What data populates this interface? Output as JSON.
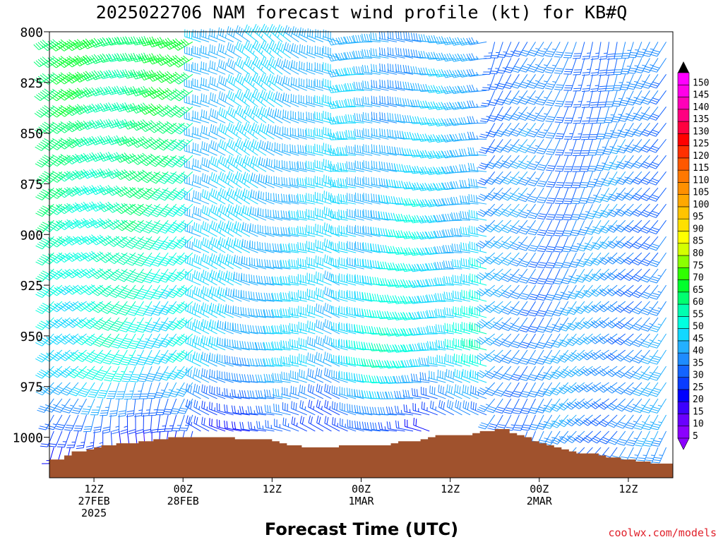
{
  "chart_data": {
    "type": "wind-barb",
    "title": "2025022706 NAM forecast wind profile (kt) for KB#Q",
    "xlabel": "Forecast Time (UTC)",
    "ylabel": "",
    "units": "kt",
    "y_axis": {
      "ticks": [
        "800",
        "825",
        "850",
        "875",
        "900",
        "925",
        "950",
        "975",
        "1000"
      ],
      "ylim_hPa": [
        1020,
        800
      ],
      "reversed": true
    },
    "x_axis": {
      "ticks": [
        {
          "hour": 6,
          "line1": "12Z",
          "line2": "27FEB",
          "line3": "2025"
        },
        {
          "hour": 18,
          "line1": "00Z",
          "line2": "28FEB",
          "line3": ""
        },
        {
          "hour": 30,
          "line1": "12Z",
          "line2": "",
          "line3": ""
        },
        {
          "hour": 42,
          "line1": "00Z",
          "line2": "1MAR",
          "line3": ""
        },
        {
          "hour": 54,
          "line1": "12Z",
          "line2": "",
          "line3": ""
        },
        {
          "hour": 66,
          "line1": "00Z",
          "line2": "2MAR",
          "line3": ""
        },
        {
          "hour": 78,
          "line1": "12Z",
          "line2": "",
          "line3": ""
        }
      ],
      "xlim_hour": [
        0,
        84
      ]
    },
    "colorbar": {
      "levels": [
        5,
        10,
        15,
        20,
        25,
        30,
        35,
        40,
        45,
        50,
        55,
        60,
        65,
        70,
        75,
        80,
        85,
        90,
        95,
        100,
        105,
        110,
        115,
        120,
        125,
        130,
        135,
        140,
        145,
        150
      ],
      "colors": [
        "#8b00ff",
        "#6a00ff",
        "#3c00ff",
        "#0000ff",
        "#0a3cff",
        "#1464ff",
        "#1e8cff",
        "#24b0ff",
        "#12d8ff",
        "#00ffe0",
        "#00ffb0",
        "#00ff70",
        "#00ff2c",
        "#30ff00",
        "#8cff00",
        "#d4ff00",
        "#ffff00",
        "#ffe000",
        "#ffc400",
        "#ffa800",
        "#ff9000",
        "#ff7800",
        "#ff5800",
        "#ff3000",
        "#ff0000",
        "#ff0040",
        "#ff0080",
        "#ff00b8",
        "#ff00e8",
        "#ff00ff"
      ]
    },
    "terrain_color": "#a0522d",
    "terrain_pressure_hPa": [
      [
        0,
        1011
      ],
      [
        1,
        1011
      ],
      [
        2,
        1009
      ],
      [
        3,
        1007
      ],
      [
        4,
        1007
      ],
      [
        5,
        1006
      ],
      [
        6,
        1005
      ],
      [
        7,
        1004
      ],
      [
        8,
        1004
      ],
      [
        9,
        1003
      ],
      [
        10,
        1003
      ],
      [
        11,
        1003
      ],
      [
        12,
        1002
      ],
      [
        13,
        1002
      ],
      [
        14,
        1001
      ],
      [
        15,
        1001
      ],
      [
        16,
        1000
      ],
      [
        17,
        1000
      ],
      [
        18,
        1000
      ],
      [
        19,
        1000
      ],
      [
        20,
        1000
      ],
      [
        21,
        1000
      ],
      [
        22,
        1000
      ],
      [
        23,
        1000
      ],
      [
        24,
        1000
      ],
      [
        25,
        1001
      ],
      [
        26,
        1001
      ],
      [
        27,
        1001
      ],
      [
        28,
        1001
      ],
      [
        29,
        1001
      ],
      [
        30,
        1002
      ],
      [
        31,
        1003
      ],
      [
        32,
        1004
      ],
      [
        33,
        1004
      ],
      [
        34,
        1005
      ],
      [
        35,
        1005
      ],
      [
        36,
        1005
      ],
      [
        37,
        1005
      ],
      [
        38,
        1005
      ],
      [
        39,
        1004
      ],
      [
        40,
        1004
      ],
      [
        41,
        1004
      ],
      [
        42,
        1004
      ],
      [
        43,
        1004
      ],
      [
        44,
        1004
      ],
      [
        45,
        1004
      ],
      [
        46,
        1003
      ],
      [
        47,
        1002
      ],
      [
        48,
        1002
      ],
      [
        49,
        1002
      ],
      [
        50,
        1001
      ],
      [
        51,
        1000
      ],
      [
        52,
        999
      ],
      [
        53,
        999
      ],
      [
        54,
        999
      ],
      [
        55,
        999
      ],
      [
        56,
        999
      ],
      [
        57,
        998
      ],
      [
        58,
        997
      ],
      [
        59,
        997
      ],
      [
        60,
        996
      ],
      [
        61,
        996
      ],
      [
        62,
        998
      ],
      [
        63,
        999
      ],
      [
        64,
        1000
      ],
      [
        65,
        1002
      ],
      [
        66,
        1003
      ],
      [
        67,
        1004
      ],
      [
        68,
        1005
      ],
      [
        69,
        1006
      ],
      [
        70,
        1007
      ],
      [
        71,
        1008
      ],
      [
        72,
        1008
      ],
      [
        73,
        1008
      ],
      [
        74,
        1009
      ],
      [
        75,
        1010
      ],
      [
        76,
        1010
      ],
      [
        77,
        1011
      ],
      [
        78,
        1011
      ],
      [
        79,
        1012
      ],
      [
        80,
        1012
      ],
      [
        81,
        1013
      ],
      [
        82,
        1013
      ],
      [
        83,
        1013
      ],
      [
        84,
        1013
      ]
    ],
    "wind_columns_hour_step": 1.1,
    "wind_levels_hPa_step": 8,
    "regimes": [
      {
        "h0": 0,
        "h1": 20,
        "dir_top": 250,
        "dir_low": 210,
        "spd_top": 60,
        "spd_low": 42,
        "near_sfc_dir": 180,
        "near_sfc_spd": 15
      },
      {
        "h0": 20,
        "h1": 40,
        "dir_top": 300,
        "dir_low": 280,
        "spd_top": 40,
        "spd_low": 40,
        "near_sfc_dir": 290,
        "near_sfc_spd": 20
      },
      {
        "h0": 40,
        "h1": 60,
        "dir_top": 270,
        "dir_low": 275,
        "spd_top": 35,
        "spd_low": 50,
        "near_sfc_dir": 290,
        "near_sfc_spd": 20
      },
      {
        "h0": 60,
        "h1": 84,
        "dir_top": 200,
        "dir_low": 230,
        "spd_top": 30,
        "spd_low": 35,
        "near_sfc_dir": 210,
        "near_sfc_spd": 30
      }
    ]
  },
  "credit": "coolwx.com/models"
}
